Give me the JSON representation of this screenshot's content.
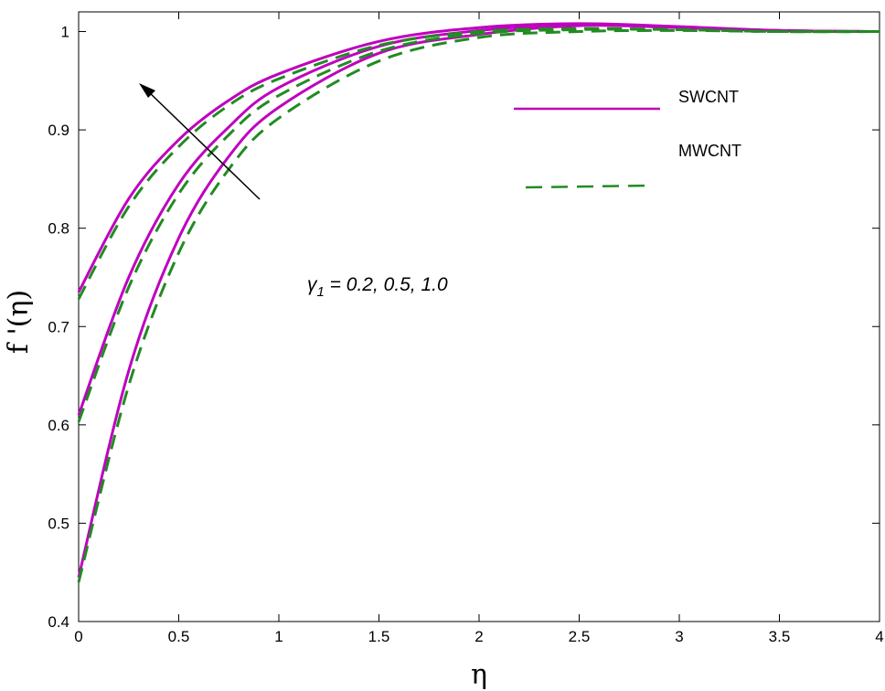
{
  "chart_data": {
    "type": "line",
    "xlabel": "η",
    "ylabel": "f '(η)",
    "xlim": [
      0,
      4
    ],
    "ylim": [
      0.4,
      1.02
    ],
    "x_ticks": [
      0,
      0.5,
      1,
      1.5,
      2,
      2.5,
      3,
      3.5,
      4
    ],
    "y_ticks": [
      0.4,
      0.5,
      0.6,
      0.7,
      0.8,
      0.9,
      1
    ],
    "x_tick_labels": [
      "0",
      "0.5",
      "1",
      "1.5",
      "2",
      "2.5",
      "3",
      "3.5",
      "4"
    ],
    "y_tick_labels": [
      "0.4",
      "0.5",
      "0.6",
      "0.7",
      "0.8",
      "0.9",
      "1"
    ],
    "grid": false,
    "legend_position": "top-right",
    "legend": [
      {
        "label": "SWCNT",
        "color": "#bf00bf",
        "style": "solid"
      },
      {
        "label": "MWCNT",
        "color": "#228b22",
        "style": "dashed"
      }
    ],
    "annotation": {
      "symbol": "γ",
      "subscript": "1",
      "text": " = 0.2, 0.5, 1.0"
    },
    "series": [
      {
        "group": "SWCNT",
        "gamma": 0.2,
        "color": "#bf00bf",
        "style": "solid",
        "x": [
          0,
          0.25,
          0.5,
          0.75,
          1,
          1.5,
          2,
          2.5,
          3,
          3.5,
          4
        ],
        "y": [
          0.445,
          0.655,
          0.79,
          0.873,
          0.923,
          0.978,
          0.997,
          1.006,
          1.004,
          1.001,
          1.0
        ]
      },
      {
        "group": "SWCNT",
        "gamma": 0.5,
        "color": "#bf00bf",
        "style": "solid",
        "x": [
          0,
          0.25,
          0.5,
          0.75,
          1,
          1.5,
          2,
          2.5,
          3,
          3.5,
          4
        ],
        "y": [
          0.61,
          0.75,
          0.845,
          0.903,
          0.943,
          0.985,
          1.001,
          1.007,
          1.004,
          1.001,
          1.0
        ]
      },
      {
        "group": "SWCNT",
        "gamma": 1.0,
        "color": "#bf00bf",
        "style": "solid",
        "x": [
          0,
          0.25,
          0.5,
          0.75,
          1,
          1.5,
          2,
          2.5,
          3,
          3.5,
          4
        ],
        "y": [
          0.735,
          0.83,
          0.89,
          0.93,
          0.957,
          0.99,
          1.004,
          1.008,
          1.005,
          1.001,
          1.0
        ]
      },
      {
        "group": "MWCNT",
        "gamma": 0.2,
        "color": "#228b22",
        "style": "dashed",
        "x": [
          0,
          0.25,
          0.5,
          0.75,
          1,
          1.5,
          2,
          2.5,
          3,
          3.5,
          4
        ],
        "y": [
          0.44,
          0.64,
          0.775,
          0.86,
          0.912,
          0.97,
          0.994,
          1.0,
          1.001,
          1.0,
          1.0
        ]
      },
      {
        "group": "MWCNT",
        "gamma": 0.5,
        "color": "#228b22",
        "style": "dashed",
        "x": [
          0,
          0.25,
          0.5,
          0.75,
          1,
          1.5,
          2,
          2.5,
          3,
          3.5,
          4
        ],
        "y": [
          0.603,
          0.74,
          0.835,
          0.895,
          0.935,
          0.98,
          0.998,
          1.002,
          1.002,
          1.0,
          1.0
        ]
      },
      {
        "group": "MWCNT",
        "gamma": 1.0,
        "color": "#228b22",
        "style": "dashed",
        "x": [
          0,
          0.25,
          0.5,
          0.75,
          1,
          1.5,
          2,
          2.5,
          3,
          3.5,
          4
        ],
        "y": [
          0.728,
          0.822,
          0.883,
          0.925,
          0.952,
          0.986,
          1.0,
          1.003,
          1.002,
          1.0,
          1.0
        ]
      }
    ]
  }
}
